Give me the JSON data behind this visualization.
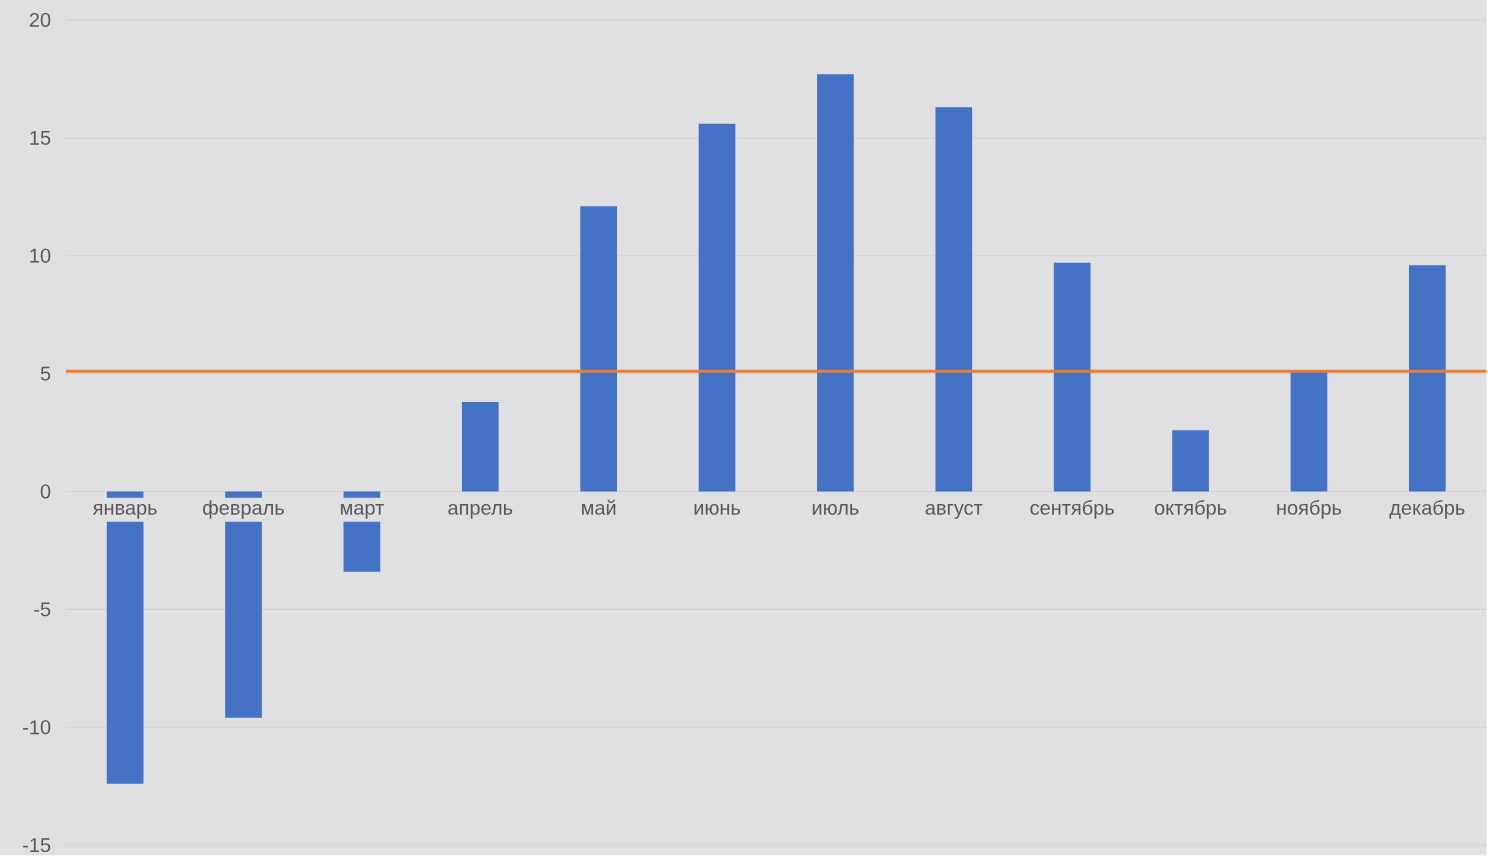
{
  "chart_data": {
    "type": "bar",
    "categories": [
      "январь",
      "февраль",
      "март",
      "апрель",
      "май",
      "июнь",
      "июль",
      "август",
      "сентябрь",
      "октябрь",
      "ноябрь",
      "декабрь"
    ],
    "values": [
      -12.4,
      -9.6,
      -3.4,
      3.8,
      12.1,
      15.6,
      17.7,
      16.3,
      9.7,
      2.6,
      5.1,
      9.6
    ],
    "color": "#4472c4",
    "ylim": [
      -15,
      20
    ],
    "yticks": [
      -15,
      -10,
      -5,
      0,
      5,
      10,
      15,
      20
    ],
    "grid": "y",
    "ref_lines": [
      {
        "axis": "y",
        "value": 5.1,
        "color": "#ed7d31"
      }
    ]
  }
}
